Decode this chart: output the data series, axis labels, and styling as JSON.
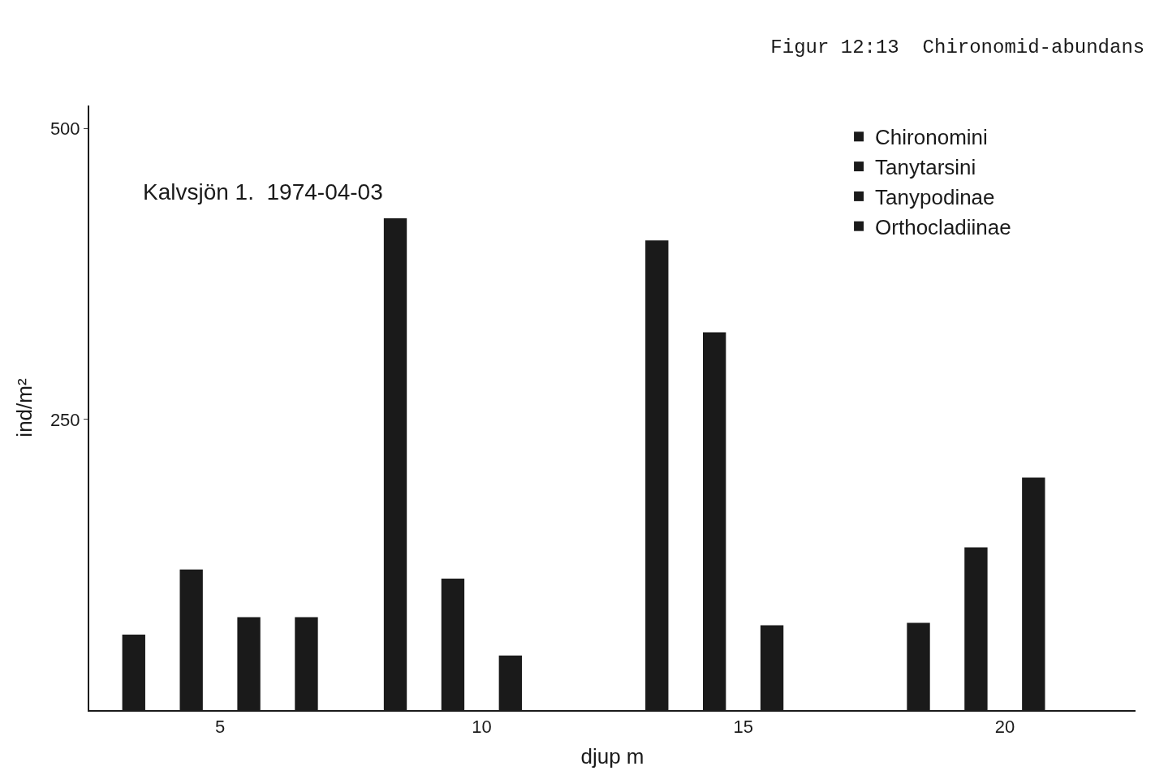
{
  "chart_data": {
    "type": "bar",
    "title": "Figur 12:13  Chironomid-abundans",
    "annotations": [
      "Kalvsjön 1.  1974-04-03"
    ],
    "xlabel": "djup m",
    "ylabel": "ind/m²",
    "categories": [
      "5",
      "10",
      "15",
      "20"
    ],
    "series": [
      {
        "name": "Chironomini",
        "color": "#1a1a1a",
        "values": [
          65,
          423,
          404,
          75
        ]
      },
      {
        "name": "Tanytarsini",
        "color": "#1a1a1a",
        "values": [
          121,
          113,
          325,
          140
        ]
      },
      {
        "name": "Tanypodinae",
        "color": "#1a1a1a",
        "values": [
          80,
          47,
          73,
          200
        ]
      },
      {
        "name": "Orthocladiinae",
        "color": "#1a1a1a",
        "values": [
          80,
          null,
          null,
          null
        ]
      }
    ],
    "ylim": [
      0,
      520
    ],
    "yticks": [
      250,
      500
    ],
    "legend": "top right"
  }
}
